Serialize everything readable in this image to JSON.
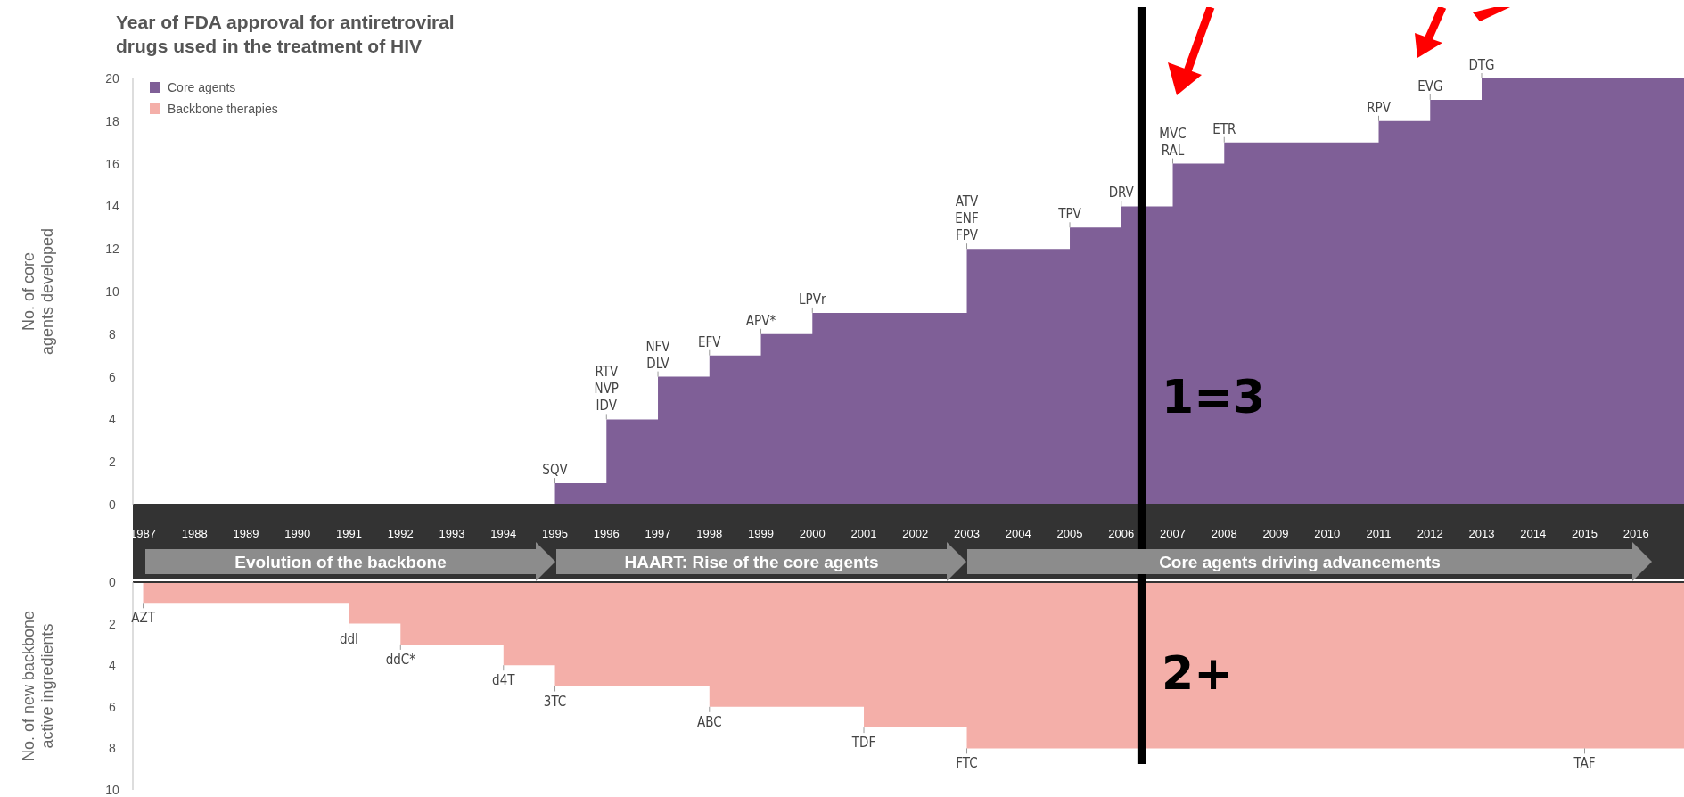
{
  "chart_data": [
    {
      "type": "area",
      "title": "Year of FDA approval for antiretroviral\ndrugs used in the treatment of HIV",
      "ylabel": "No. of core\nagents developed",
      "x": [
        1987,
        1988,
        1989,
        1990,
        1991,
        1992,
        1993,
        1994,
        1995,
        1996,
        1997,
        1998,
        1999,
        2000,
        2001,
        2002,
        2003,
        2004,
        2005,
        2006,
        2007,
        2008,
        2009,
        2010,
        2011,
        2012,
        2013,
        2014,
        2015,
        2016,
        2017
      ],
      "series": [
        {
          "name": "Core agents",
          "color": "#7f5f97",
          "values": [
            0,
            0,
            0,
            0,
            0,
            0,
            0,
            0,
            1,
            4,
            6,
            7,
            8,
            9,
            9,
            9,
            12,
            12,
            13,
            14,
            16,
            17,
            17,
            17,
            18,
            19,
            20,
            20,
            20,
            20,
            20
          ]
        }
      ],
      "xlim": [
        1986.8,
        2017
      ],
      "xticks": [
        1987,
        1988,
        1989,
        1990,
        1991,
        1992,
        1993,
        1994,
        1995,
        1996,
        1997,
        1998,
        1999,
        2000,
        2001,
        2002,
        2003,
        2004,
        2005,
        2006,
        2007,
        2008,
        2009,
        2010,
        2011,
        2012,
        2013,
        2014,
        2015,
        2016
      ],
      "ylim": [
        0,
        20
      ],
      "yticks": [
        0,
        2,
        4,
        6,
        8,
        10,
        12,
        14,
        16,
        18,
        20
      ],
      "legend": "top left",
      "ref_lines": [
        {
          "axis": "x",
          "value": 2006.4,
          "color": "#000000"
        }
      ],
      "annotations": [
        {
          "text": "SQV",
          "x": 1995,
          "y": 1
        },
        {
          "text": "RTV\nNVP\nIDV",
          "x": 1996,
          "y": 4
        },
        {
          "text": "NFV\nDLV",
          "x": 1997,
          "y": 6
        },
        {
          "text": "EFV",
          "x": 1998,
          "y": 7
        },
        {
          "text": "APV*",
          "x": 1999,
          "y": 8
        },
        {
          "text": "LPVr",
          "x": 2000,
          "y": 9
        },
        {
          "text": "ATV\nENF\nFPV",
          "x": 2003,
          "y": 12
        },
        {
          "text": "TPV",
          "x": 2005,
          "y": 13
        },
        {
          "text": "DRV",
          "x": 2006,
          "y": 14
        },
        {
          "text": "MVC\nRAL",
          "x": 2007,
          "y": 16
        },
        {
          "text": "ETR",
          "x": 2008,
          "y": 17
        },
        {
          "text": "RPV",
          "x": 2011,
          "y": 18
        },
        {
          "text": "EVG",
          "x": 2012,
          "y": 19
        },
        {
          "text": "DTG",
          "x": 2013,
          "y": 20
        },
        "1=3",
        "Evolution of the backbone",
        "HAART: Rise of the core agents",
        "Core agents driving advancements"
      ]
    },
    {
      "type": "area",
      "ylabel": "No. of new backbone\nactive ingredients",
      "x": [
        1987,
        1988,
        1989,
        1990,
        1991,
        1992,
        1993,
        1994,
        1995,
        1996,
        1997,
        1998,
        1999,
        2000,
        2001,
        2002,
        2003,
        2004,
        2005,
        2006,
        2007,
        2008,
        2009,
        2010,
        2011,
        2012,
        2013,
        2014,
        2015,
        2016,
        2017
      ],
      "series": [
        {
          "name": "Backbone therapies",
          "color": "#f4afa9",
          "values": [
            1,
            1,
            1,
            1,
            2,
            3,
            3,
            4,
            5,
            5,
            5,
            6,
            6,
            6,
            7,
            7,
            8,
            8,
            8,
            8,
            8,
            8,
            8,
            8,
            8,
            8,
            8,
            8,
            8,
            8,
            8
          ]
        }
      ],
      "xlim": [
        1986.8,
        2017
      ],
      "ylim": [
        10,
        0
      ],
      "yticks": [
        0,
        2,
        4,
        6,
        8,
        10
      ],
      "tick_labels": "y",
      "ref_lines": [
        {
          "axis": "x",
          "value": 2006.4,
          "color": "#000000"
        }
      ],
      "annotations": [
        {
          "text": "AZT",
          "x": 1987,
          "y": 1
        },
        {
          "text": "ddI",
          "x": 1991,
          "y": 2
        },
        {
          "text": "ddC*",
          "x": 1992,
          "y": 3
        },
        {
          "text": "d4T",
          "x": 1994,
          "y": 4
        },
        {
          "text": "3TC",
          "x": 1995,
          "y": 5
        },
        {
          "text": "ABC",
          "x": 1998,
          "y": 6
        },
        {
          "text": "TDF",
          "x": 2001,
          "y": 7
        },
        {
          "text": "FTC",
          "x": 2003,
          "y": 8
        },
        {
          "text": "TAF",
          "x": 2015,
          "y": 8
        },
        "2+"
      ]
    }
  ]
}
